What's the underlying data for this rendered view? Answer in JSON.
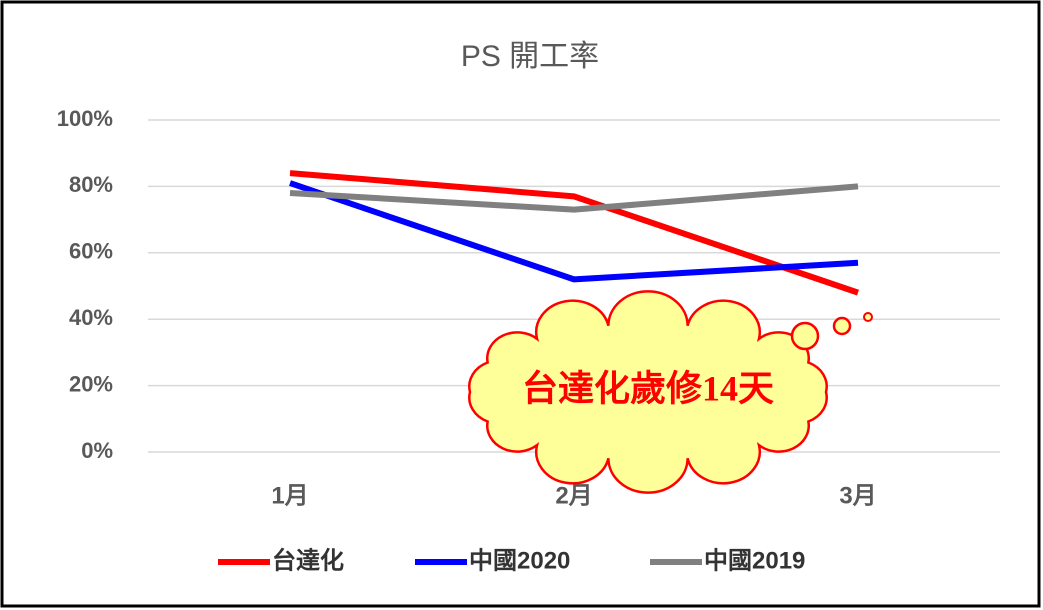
{
  "chart_data": {
    "type": "line",
    "title": "PS 開工率",
    "categories": [
      "1月",
      "2月",
      "3月"
    ],
    "series": [
      {
        "name": "台達化",
        "color": "#ff0000",
        "values": [
          84,
          77,
          48
        ]
      },
      {
        "name": "中國2020",
        "color": "#0000ff",
        "values": [
          81,
          52,
          57
        ]
      },
      {
        "name": "中國2019",
        "color": "#808080",
        "values": [
          78,
          73,
          80
        ]
      }
    ],
    "ylim": [
      0,
      100
    ],
    "yticks": [
      {
        "value": 0,
        "label": "0%"
      },
      {
        "value": 20,
        "label": "20%"
      },
      {
        "value": 40,
        "label": "40%"
      },
      {
        "value": 60,
        "label": "60%"
      },
      {
        "value": 80,
        "label": "80%"
      },
      {
        "value": 100,
        "label": "100%"
      }
    ],
    "grid": true,
    "legend": "bottom",
    "annotations": [
      "台達化歲修14天"
    ]
  }
}
